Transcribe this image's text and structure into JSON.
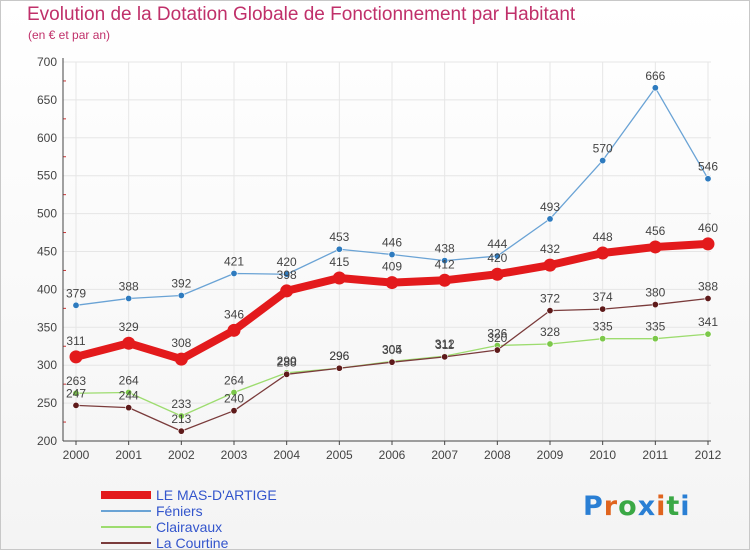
{
  "title": "Evolution de la Dotation Globale de Fonctionnement par Habitant",
  "subtitle": "(en € et par an)",
  "logo": "Proxiti",
  "colors": {
    "title": "#c0306a",
    "grid": "#e6e6e6",
    "axis": "#444444",
    "legend_text": "#3355cc",
    "logo_letters": [
      "#2a7fd4",
      "#e0641e",
      "#3aa845",
      "#2a7fd4",
      "#e0641e",
      "#3aa845",
      "#2a7fd4"
    ]
  },
  "chart_data": {
    "type": "line",
    "categories": [
      "2000",
      "2001",
      "2002",
      "2003",
      "2004",
      "2005",
      "2006",
      "2007",
      "2008",
      "2009",
      "2010",
      "2011",
      "2012"
    ],
    "y_ticks": [
      200,
      250,
      300,
      350,
      400,
      450,
      500,
      550,
      600,
      650,
      700
    ],
    "ylim": [
      200,
      700
    ],
    "grid": true,
    "legend_position": "bottom-left",
    "series": [
      {
        "name": "LE MAS-D'ARTIGE",
        "color": "#e31a1c",
        "marker": "#e31a1c",
        "width": 8,
        "values": [
          311,
          329,
          308,
          346,
          398,
          415,
          409,
          412,
          420,
          432,
          448,
          456,
          460
        ]
      },
      {
        "name": "Féniers",
        "color": "#6aa3d5",
        "marker": "#2e7bbf",
        "width": 1.3,
        "values": [
          379,
          388,
          392,
          421,
          420,
          453,
          446,
          438,
          444,
          493,
          570,
          666,
          546
        ]
      },
      {
        "name": "Clairavaux",
        "color": "#9ddc6f",
        "marker": "#7cc84a",
        "width": 1.3,
        "values": [
          263,
          264,
          233,
          264,
          290,
          296,
          305,
          312,
          326,
          328,
          335,
          335,
          341
        ]
      },
      {
        "name": "La Courtine",
        "color": "#7a3b3b",
        "marker": "#5e1a1a",
        "width": 1.3,
        "values": [
          247,
          244,
          213,
          240,
          288,
          296,
          304,
          311,
          320,
          372,
          374,
          380,
          388
        ]
      }
    ]
  }
}
